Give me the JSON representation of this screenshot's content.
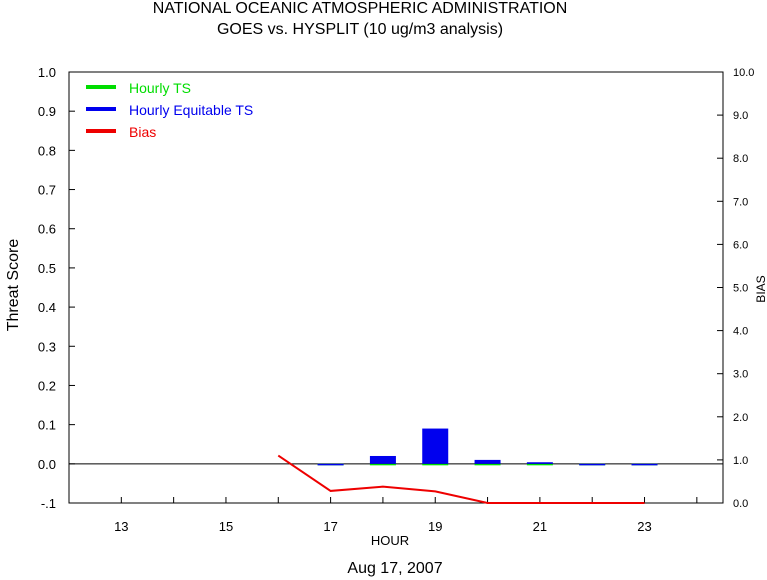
{
  "header": {
    "title": "NATIONAL OCEANIC ATMOSPHERIC ADMINISTRATION",
    "subtitle": "GOES vs. HYSPLIT  (10 ug/m3 analysis)"
  },
  "footer": {
    "date": "Aug 17, 2007"
  },
  "colors": {
    "ts": "#00dd00",
    "ets": "#0000ee",
    "bias": "#ee0000",
    "axis": "#000000"
  },
  "chart_data": {
    "type": "bar",
    "xlabel": "HOUR",
    "ylabel": "Threat Score",
    "ylabel_right": "BIAS",
    "xlim": [
      12,
      24.5
    ],
    "ylim": [
      -0.1,
      1.0
    ],
    "ylim_right": [
      0.0,
      10.0
    ],
    "x_ticks": [
      "13",
      "15",
      "17",
      "19",
      "21",
      "23"
    ],
    "y_ticks": [
      "1.0",
      "0.9",
      "0.8",
      "0.7",
      "0.6",
      "0.5",
      "0.4",
      "0.3",
      "0.2",
      "0.1",
      "0.0",
      "-.1"
    ],
    "y_right_ticks": [
      "10.0",
      "9.0",
      "8.0",
      "7.0",
      "6.0",
      "5.0",
      "4.0",
      "3.0",
      "2.0",
      "1.0",
      "0.0"
    ],
    "legend_position": "top-left",
    "series": [
      {
        "name": "Hourly TS",
        "kind": "bar",
        "x": [
          17,
          18,
          19,
          20,
          21,
          22,
          23
        ],
        "values": [
          0.0,
          0.0,
          0.0,
          0.0,
          0.0,
          0.0,
          0.0
        ]
      },
      {
        "name": "Hourly Equitable TS",
        "kind": "bar",
        "x": [
          17,
          18,
          19,
          20,
          21,
          22,
          23
        ],
        "values": [
          -0.002,
          0.02,
          0.09,
          0.01,
          0.004,
          -0.001,
          0.0
        ]
      },
      {
        "name": "Bias",
        "kind": "line",
        "axis": "right",
        "x": [
          16,
          17,
          18,
          19,
          20,
          21,
          22,
          23
        ],
        "values": [
          1.1,
          0.28,
          0.38,
          0.27,
          0.0,
          0.0,
          0.0,
          0.0
        ]
      }
    ]
  }
}
